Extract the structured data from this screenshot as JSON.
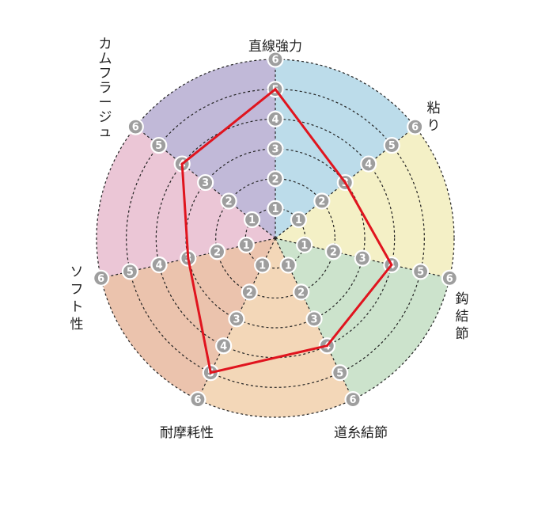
{
  "chart_data": {
    "type": "radar",
    "axes": [
      "直線強力",
      "粘り",
      "鈎結節",
      "道糸結節",
      "耐摩耗性",
      "ソフト性",
      "カムフラージュ"
    ],
    "tick_labels": [
      "1",
      "2",
      "3",
      "4",
      "5",
      "6"
    ],
    "range": [
      0,
      6
    ],
    "values": [
      5,
      3,
      4,
      4,
      5,
      3,
      4
    ],
    "line_color": "#e0141e",
    "sector_colors": [
      "#bcdcea",
      "#f4f0c6",
      "#cce3cc",
      "#f3d7b8",
      "#ebc3ad",
      "#ebc6d6",
      "#c1b9d8"
    ],
    "grid": "dashed rings"
  }
}
